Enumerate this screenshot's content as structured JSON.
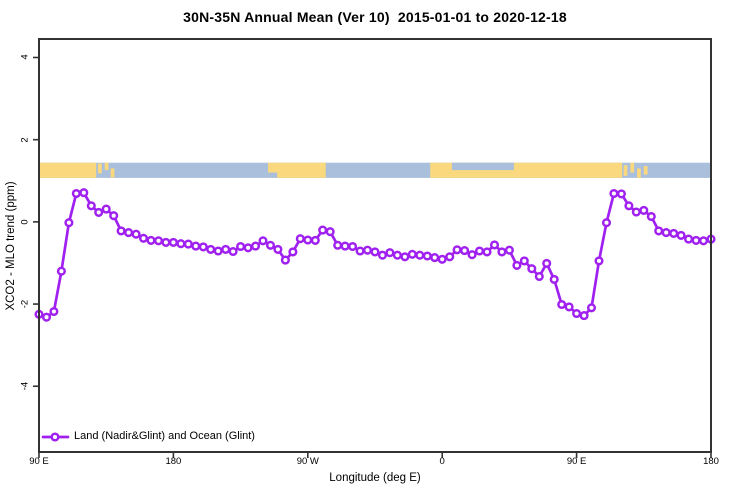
{
  "chart_data": {
    "type": "line",
    "title": "30N-35N Annual Mean (Ver 10)  2015-01-01 to 2020-12-18",
    "xlabel": "Longitude (deg E)",
    "ylabel": "XCO2 - MLO trend (ppm)",
    "xlim": [
      90,
      540
    ],
    "ylim": [
      -5.6,
      4.45
    ],
    "grid": false,
    "legend_position": "bottom-left",
    "x_start": 90,
    "x_step": 5,
    "x_ticks": [
      {
        "x": 90,
        "label": "90 E"
      },
      {
        "x": 180,
        "label": "180"
      },
      {
        "x": 270,
        "label": "90 W"
      },
      {
        "x": 360,
        "label": "0"
      },
      {
        "x": 450,
        "label": "90 E"
      },
      {
        "x": 540,
        "label": "180"
      }
    ],
    "y_ticks": [
      {
        "v": 4,
        "label": "4"
      },
      {
        "v": 2,
        "label": "2"
      },
      {
        "v": 0,
        "label": "0"
      },
      {
        "v": -2,
        "label": "-2"
      },
      {
        "v": -4,
        "label": "-4"
      }
    ],
    "series": [
      {
        "name": "Land (Nadir&Glint) and Ocean (Glint)",
        "color": "#A020F0",
        "values": [
          -2.25,
          -2.32,
          -2.18,
          -1.2,
          -0.02,
          0.69,
          0.71,
          0.39,
          0.23,
          0.31,
          0.15,
          -0.22,
          -0.26,
          -0.3,
          -0.4,
          -0.45,
          -0.46,
          -0.5,
          -0.5,
          -0.53,
          -0.54,
          -0.59,
          -0.61,
          -0.67,
          -0.71,
          -0.67,
          -0.72,
          -0.6,
          -0.63,
          -0.59,
          -0.46,
          -0.57,
          -0.67,
          -0.93,
          -0.73,
          -0.41,
          -0.44,
          -0.45,
          -0.2,
          -0.24,
          -0.57,
          -0.59,
          -0.6,
          -0.71,
          -0.69,
          -0.73,
          -0.81,
          -0.75,
          -0.81,
          -0.85,
          -0.79,
          -0.81,
          -0.83,
          -0.87,
          -0.91,
          -0.85,
          -0.68,
          -0.7,
          -0.8,
          -0.71,
          -0.73,
          -0.56,
          -0.73,
          -0.69,
          -1.06,
          -0.95,
          -1.14,
          -1.33,
          -1.01,
          -1.4,
          -2.01,
          -2.07,
          -2.23,
          -2.28,
          -2.09,
          -0.95,
          -0.02,
          0.69,
          0.68,
          0.39,
          0.24,
          0.28,
          0.13,
          -0.22,
          -0.26,
          -0.28,
          -0.33,
          -0.42,
          -0.45,
          -0.46,
          -0.42
        ]
      }
    ],
    "map_band": {
      "ocean_color": "#A9BFDC",
      "land_color": "#FAD87E",
      "v_bottom": 1.07,
      "v_top": 1.44,
      "segments": [
        {
          "lon0": 90,
          "lon1": 540,
          "v0": 1.07,
          "v1": 1.44,
          "type": "ocean"
        },
        {
          "lon0": 90,
          "lon1": 128.3,
          "v0": 1.07,
          "v1": 1.44,
          "type": "land"
        },
        {
          "lon0": 129.5,
          "lon1": 132,
          "v0": 1.18,
          "v1": 1.42,
          "type": "land"
        },
        {
          "lon0": 134,
          "lon1": 136.5,
          "v0": 1.26,
          "v1": 1.44,
          "type": "land"
        },
        {
          "lon0": 138,
          "lon1": 140.5,
          "v0": 1.08,
          "v1": 1.3,
          "type": "land"
        },
        {
          "lon0": 243.4,
          "lon1": 282,
          "v0": 1.07,
          "v1": 1.44,
          "type": "land"
        },
        {
          "lon0": 243.4,
          "lon1": 249.5,
          "v0": 1.07,
          "v1": 1.2,
          "type": "ocean"
        },
        {
          "lon0": 352,
          "lon1": 480.5,
          "v0": 1.07,
          "v1": 1.44,
          "type": "land"
        },
        {
          "lon0": 366.5,
          "lon1": 408,
          "v0": 1.26,
          "v1": 1.44,
          "type": "ocean"
        },
        {
          "lon0": 481.5,
          "lon1": 484,
          "v0": 1.12,
          "v1": 1.38,
          "type": "land"
        },
        {
          "lon0": 486,
          "lon1": 488.5,
          "v0": 1.2,
          "v1": 1.44,
          "type": "land"
        },
        {
          "lon0": 490.5,
          "lon1": 493,
          "v0": 1.07,
          "v1": 1.3,
          "type": "land"
        },
        {
          "lon0": 495,
          "lon1": 497.5,
          "v0": 1.15,
          "v1": 1.36,
          "type": "land"
        }
      ]
    }
  },
  "legend": {
    "label": "Land (Nadir&Glint) and Ocean (Glint)"
  },
  "colors": {
    "axis": "#333333",
    "line": "#A020F0",
    "marker_fill": "#ffffff",
    "land": "#FAD87E",
    "ocean": "#A9BFDC",
    "background": "#ffffff"
  }
}
